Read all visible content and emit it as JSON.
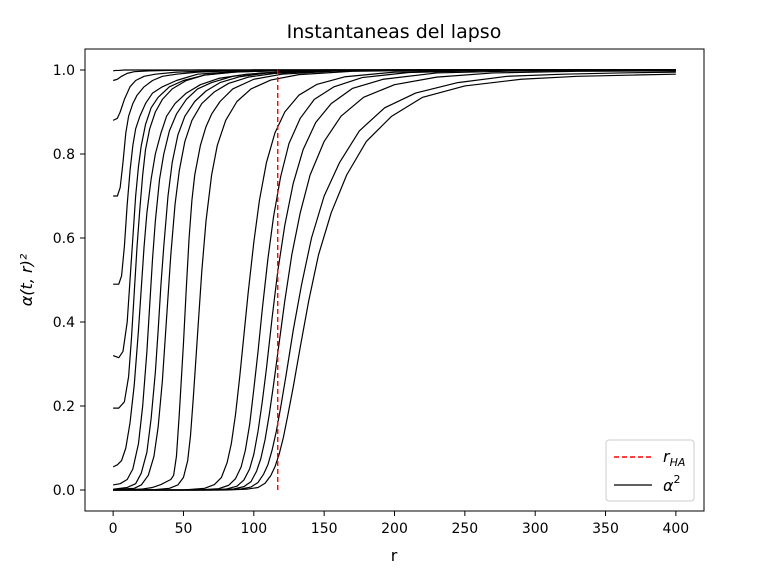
{
  "chart_data": {
    "type": "line",
    "title": "Instantaneas del lapso",
    "xlabel": "r",
    "ylabel": "α(t, r)²",
    "xlim": [
      -20,
      420
    ],
    "ylim": [
      -0.05,
      1.05
    ],
    "xticks": [
      0,
      50,
      100,
      150,
      200,
      250,
      300,
      350,
      400
    ],
    "yticks": [
      0.0,
      0.2,
      0.4,
      0.6,
      0.8,
      1.0
    ],
    "xtick_labels": [
      "0",
      "50",
      "100",
      "150",
      "200",
      "250",
      "300",
      "350",
      "400"
    ],
    "ytick_labels": [
      "0.0",
      "0.2",
      "0.4",
      "0.6",
      "0.8",
      "1.0"
    ],
    "grid": false,
    "legend": {
      "placement": "lower-right",
      "entries": [
        {
          "label": "r_HA",
          "base": "r",
          "sub": "HA",
          "style": "dashed",
          "color": "#ff0000"
        },
        {
          "label": "α²",
          "base": "α",
          "sup": "2",
          "style": "solid",
          "color": "#000000"
        }
      ]
    },
    "vline": {
      "name": "r_HA",
      "x": 117,
      "y_range": [
        0.0,
        1.0
      ],
      "color": "#ff0000",
      "style": "dashed"
    },
    "series": [
      {
        "name": "α² t0",
        "x": [
          0,
          2,
          4,
          8,
          15,
          25,
          40,
          60,
          100,
          200,
          400
        ],
        "y": [
          0.998,
          0.999,
          0.999,
          1.0,
          1.0,
          1.0,
          1.0,
          1.0,
          1.0,
          1.0,
          1.0
        ]
      },
      {
        "name": "α² t1",
        "x": [
          0,
          3,
          6,
          10,
          15,
          25,
          40,
          60,
          100,
          200,
          400
        ],
        "y": [
          0.975,
          0.978,
          0.985,
          0.992,
          0.996,
          0.998,
          0.999,
          1.0,
          1.0,
          1.0,
          1.0
        ]
      },
      {
        "name": "α² t2",
        "x": [
          0,
          3,
          5,
          8,
          12,
          16,
          22,
          30,
          45,
          70,
          100,
          200,
          400
        ],
        "y": [
          0.88,
          0.885,
          0.9,
          0.93,
          0.96,
          0.975,
          0.985,
          0.99,
          0.995,
          0.998,
          1.0,
          1.0,
          1.0
        ]
      },
      {
        "name": "α² t3",
        "x": [
          0,
          3,
          5,
          7,
          9,
          11,
          14,
          17,
          22,
          28,
          35,
          45,
          60,
          100,
          200,
          400
        ],
        "y": [
          0.7,
          0.7,
          0.72,
          0.78,
          0.85,
          0.89,
          0.92,
          0.94,
          0.96,
          0.975,
          0.985,
          0.99,
          0.995,
          1.0,
          1.0,
          1.0
        ]
      },
      {
        "name": "α² t4",
        "x": [
          0,
          4,
          6,
          8,
          10,
          12,
          14,
          16,
          19,
          23,
          28,
          35,
          45,
          60,
          90,
          150,
          400
        ],
        "y": [
          0.49,
          0.49,
          0.51,
          0.58,
          0.68,
          0.76,
          0.82,
          0.86,
          0.89,
          0.92,
          0.945,
          0.96,
          0.975,
          0.99,
          0.997,
          1.0,
          1.0
        ]
      },
      {
        "name": "α² t5",
        "x": [
          0,
          4,
          7,
          10,
          12,
          14,
          16,
          18,
          20,
          23,
          27,
          32,
          40,
          50,
          65,
          90,
          150,
          400
        ],
        "y": [
          0.32,
          0.315,
          0.33,
          0.4,
          0.5,
          0.6,
          0.7,
          0.77,
          0.82,
          0.87,
          0.91,
          0.935,
          0.96,
          0.975,
          0.988,
          0.996,
          1.0,
          1.0
        ]
      },
      {
        "name": "α² t6",
        "x": [
          0,
          4,
          8,
          11,
          13,
          15,
          17,
          19,
          21,
          23,
          26,
          30,
          35,
          42,
          52,
          65,
          85,
          120,
          200,
          400
        ],
        "y": [
          0.195,
          0.195,
          0.21,
          0.27,
          0.36,
          0.47,
          0.58,
          0.67,
          0.75,
          0.81,
          0.86,
          0.9,
          0.93,
          0.955,
          0.975,
          0.988,
          0.995,
          0.999,
          1.0,
          1.0
        ]
      },
      {
        "name": "α² t7",
        "x": [
          0,
          3,
          6,
          9,
          12,
          15,
          18,
          20,
          22,
          24,
          27,
          30,
          34,
          38,
          44,
          52,
          62,
          75,
          95,
          130,
          200,
          400
        ],
        "y": [
          0.055,
          0.06,
          0.07,
          0.1,
          0.16,
          0.25,
          0.38,
          0.48,
          0.58,
          0.66,
          0.74,
          0.8,
          0.85,
          0.89,
          0.92,
          0.945,
          0.965,
          0.98,
          0.99,
          0.997,
          1.0,
          1.0
        ]
      },
      {
        "name": "α² t8",
        "x": [
          0,
          5,
          10,
          14,
          18,
          21,
          24,
          26,
          28,
          30,
          33,
          36,
          40,
          45,
          52,
          60,
          70,
          85,
          105,
          140,
          200,
          400
        ],
        "y": [
          0.012,
          0.015,
          0.025,
          0.05,
          0.11,
          0.2,
          0.33,
          0.44,
          0.55,
          0.64,
          0.74,
          0.8,
          0.855,
          0.895,
          0.93,
          0.955,
          0.97,
          0.985,
          0.993,
          0.998,
          1.0,
          1.0
        ]
      },
      {
        "name": "α² t9",
        "x": [
          0,
          10,
          16,
          20,
          24,
          27,
          30,
          32,
          34,
          36,
          39,
          42,
          46,
          51,
          58,
          66,
          76,
          90,
          110,
          150,
          220,
          400
        ],
        "y": [
          0.002,
          0.006,
          0.015,
          0.04,
          0.09,
          0.17,
          0.28,
          0.38,
          0.49,
          0.58,
          0.7,
          0.78,
          0.845,
          0.89,
          0.925,
          0.95,
          0.97,
          0.984,
          0.993,
          0.998,
          1.0,
          1.0
        ]
      },
      {
        "name": "α² t10",
        "x": [
          0,
          15,
          20,
          25,
          29,
          32,
          35,
          37,
          39,
          41,
          44,
          47,
          51,
          56,
          63,
          72,
          82,
          96,
          115,
          150,
          220,
          400
        ],
        "y": [
          0.001,
          0.004,
          0.012,
          0.035,
          0.08,
          0.15,
          0.26,
          0.36,
          0.46,
          0.56,
          0.68,
          0.76,
          0.83,
          0.88,
          0.92,
          0.948,
          0.968,
          0.983,
          0.992,
          0.998,
          1.0,
          1.0
        ]
      },
      {
        "name": "α² t11",
        "x": [
          0,
          20,
          28,
          34,
          38,
          41,
          43,
          45,
          47,
          50,
          52,
          54,
          56,
          58,
          62,
          66,
          70,
          76,
          85,
          100,
          120,
          160,
          230,
          400
        ],
        "y": [
          0.0,
          0.002,
          0.006,
          0.013,
          0.02,
          0.025,
          0.035,
          0.08,
          0.18,
          0.35,
          0.48,
          0.6,
          0.69,
          0.75,
          0.82,
          0.865,
          0.895,
          0.925,
          0.955,
          0.978,
          0.99,
          0.998,
          1.0,
          1.0
        ]
      },
      {
        "name": "α² t12",
        "x": [
          0,
          30,
          40,
          46,
          50,
          53,
          55,
          57,
          59,
          61,
          63,
          66,
          70,
          74,
          80,
          88,
          98,
          112,
          132,
          170,
          240,
          400
        ],
        "y": [
          0.0,
          0.001,
          0.004,
          0.012,
          0.03,
          0.07,
          0.13,
          0.22,
          0.32,
          0.42,
          0.52,
          0.64,
          0.75,
          0.82,
          0.88,
          0.925,
          0.955,
          0.976,
          0.989,
          0.997,
          1.0,
          1.0
        ]
      },
      {
        "name": "α² t13",
        "x": [
          0,
          50,
          65,
          72,
          77,
          81,
          84,
          87,
          90,
          93,
          96,
          100,
          104,
          109,
          115,
          122,
          132,
          145,
          165,
          200,
          260,
          400
        ],
        "y": [
          0.0,
          0.0,
          0.004,
          0.013,
          0.03,
          0.065,
          0.11,
          0.18,
          0.27,
          0.37,
          0.47,
          0.59,
          0.69,
          0.78,
          0.85,
          0.9,
          0.94,
          0.966,
          0.984,
          0.995,
          0.999,
          1.0
        ]
      },
      {
        "name": "α² t14",
        "x": [
          0,
          60,
          75,
          82,
          87,
          91,
          94,
          97,
          100,
          103,
          106,
          110,
          114,
          119,
          125,
          133,
          143,
          157,
          177,
          210,
          270,
          400
        ],
        "y": [
          0.0,
          0.0,
          0.003,
          0.011,
          0.027,
          0.055,
          0.095,
          0.155,
          0.24,
          0.33,
          0.43,
          0.55,
          0.65,
          0.745,
          0.825,
          0.885,
          0.93,
          0.96,
          0.982,
          0.994,
          0.999,
          1.0
        ]
      },
      {
        "name": "α² t15",
        "x": [
          0,
          65,
          80,
          88,
          93,
          97,
          100,
          103,
          106,
          109,
          113,
          117,
          122,
          128,
          135,
          144,
          155,
          170,
          192,
          230,
          290,
          400
        ],
        "y": [
          0.0,
          0.0,
          0.002,
          0.009,
          0.024,
          0.05,
          0.085,
          0.14,
          0.21,
          0.29,
          0.41,
          0.52,
          0.63,
          0.73,
          0.81,
          0.875,
          0.92,
          0.956,
          0.978,
          0.993,
          0.998,
          1.0
        ]
      },
      {
        "name": "α² t16",
        "x": [
          0,
          70,
          85,
          93,
          98,
          102,
          105,
          108,
          111,
          114,
          118,
          122,
          127,
          133,
          140,
          150,
          162,
          178,
          200,
          230,
          270,
          330,
          400
        ],
        "y": [
          0.0,
          0.0,
          0.002,
          0.008,
          0.02,
          0.045,
          0.075,
          0.12,
          0.18,
          0.25,
          0.35,
          0.45,
          0.56,
          0.66,
          0.75,
          0.83,
          0.89,
          0.935,
          0.965,
          0.983,
          0.993,
          0.997,
          0.998
        ]
      },
      {
        "name": "α² t17",
        "x": [
          0,
          75,
          90,
          98,
          103,
          107,
          110,
          113,
          116,
          119,
          123,
          128,
          134,
          141,
          150,
          161,
          175,
          193,
          215,
          245,
          280,
          320,
          360,
          400
        ],
        "y": [
          0.0,
          0.0,
          0.002,
          0.007,
          0.018,
          0.038,
          0.06,
          0.095,
          0.14,
          0.195,
          0.275,
          0.38,
          0.49,
          0.6,
          0.7,
          0.78,
          0.855,
          0.91,
          0.945,
          0.97,
          0.985,
          0.99,
          0.993,
          0.995
        ]
      },
      {
        "name": "α² t18",
        "x": [
          0,
          80,
          95,
          103,
          108,
          112,
          115,
          118,
          121,
          124,
          128,
          133,
          139,
          146,
          155,
          166,
          180,
          198,
          220,
          250,
          290,
          330,
          370,
          400
        ],
        "y": [
          0.0,
          0.0,
          0.002,
          0.006,
          0.016,
          0.034,
          0.055,
          0.085,
          0.125,
          0.175,
          0.245,
          0.34,
          0.45,
          0.56,
          0.66,
          0.75,
          0.83,
          0.89,
          0.935,
          0.962,
          0.978,
          0.985,
          0.988,
          0.99
        ]
      }
    ]
  }
}
